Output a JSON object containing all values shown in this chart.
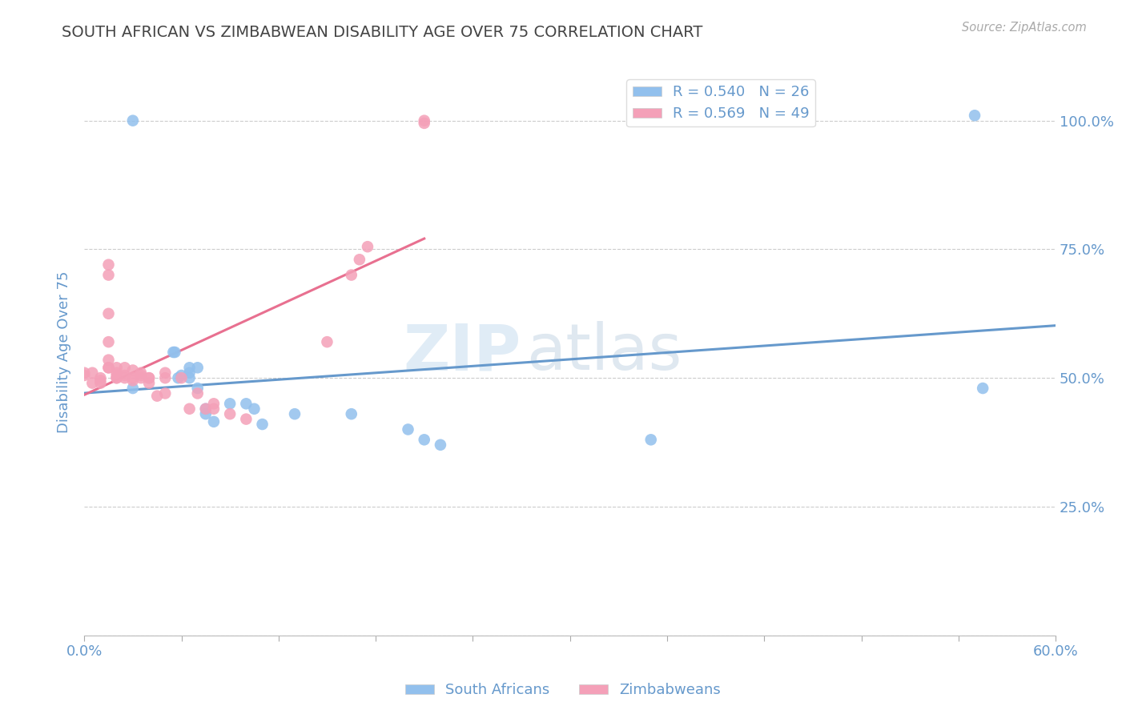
{
  "title": "SOUTH AFRICAN VS ZIMBABWEAN DISABILITY AGE OVER 75 CORRELATION CHART",
  "source": "Source: ZipAtlas.com",
  "ylabel": "Disability Age Over 75",
  "xlabel": "",
  "xlim": [
    0.0,
    0.6
  ],
  "ylim": [
    0.0,
    1.1
  ],
  "xticks": [
    0.0,
    0.06,
    0.12,
    0.18,
    0.24,
    0.3,
    0.36,
    0.42,
    0.48,
    0.54,
    0.6
  ],
  "xtick_labels": [
    "0.0%",
    "",
    "",
    "",
    "",
    "",
    "",
    "",
    "",
    "",
    "60.0%"
  ],
  "yticks": [
    0.0,
    0.25,
    0.5,
    0.75,
    1.0
  ],
  "ytick_labels_left": [
    "",
    "",
    "",
    "",
    ""
  ],
  "ytick_labels_right": [
    "",
    "25.0%",
    "50.0%",
    "75.0%",
    "100.0%"
  ],
  "legend_sa": "R = 0.540   N = 26",
  "legend_zw": "R = 0.569   N = 49",
  "sa_color": "#92C0ED",
  "zw_color": "#F4A0B8",
  "sa_line_color": "#6699CC",
  "zw_line_color": "#E87090",
  "axis_color": "#6699CC",
  "watermark_zip": "ZIP",
  "watermark_atlas": "atlas",
  "background_color": "#FFFFFF",
  "sa_x": [
    0.03,
    0.03,
    0.055,
    0.056,
    0.058,
    0.06,
    0.065,
    0.065,
    0.065,
    0.07,
    0.07,
    0.075,
    0.075,
    0.08,
    0.09,
    0.1,
    0.105,
    0.11,
    0.13,
    0.165,
    0.2,
    0.21,
    0.22,
    0.35,
    0.55,
    0.555
  ],
  "sa_y": [
    1.0,
    0.48,
    0.55,
    0.55,
    0.5,
    0.505,
    0.5,
    0.51,
    0.52,
    0.48,
    0.52,
    0.43,
    0.44,
    0.415,
    0.45,
    0.45,
    0.44,
    0.41,
    0.43,
    0.43,
    0.4,
    0.38,
    0.37,
    0.38,
    1.01,
    0.48
  ],
  "zw_x": [
    0.0,
    0.0,
    0.005,
    0.005,
    0.01,
    0.01,
    0.01,
    0.015,
    0.015,
    0.015,
    0.015,
    0.015,
    0.015,
    0.015,
    0.02,
    0.02,
    0.02,
    0.02,
    0.02,
    0.025,
    0.025,
    0.025,
    0.03,
    0.03,
    0.03,
    0.035,
    0.035,
    0.035,
    0.04,
    0.04,
    0.04,
    0.045,
    0.05,
    0.05,
    0.05,
    0.06,
    0.065,
    0.07,
    0.075,
    0.08,
    0.08,
    0.09,
    0.1,
    0.15,
    0.165,
    0.17,
    0.175,
    0.21,
    0.21
  ],
  "zw_y": [
    0.51,
    0.505,
    0.49,
    0.51,
    0.49,
    0.495,
    0.5,
    0.52,
    0.52,
    0.535,
    0.57,
    0.625,
    0.7,
    0.72,
    0.5,
    0.5,
    0.505,
    0.51,
    0.52,
    0.5,
    0.505,
    0.52,
    0.495,
    0.5,
    0.515,
    0.5,
    0.505,
    0.51,
    0.49,
    0.5,
    0.5,
    0.465,
    0.47,
    0.5,
    0.51,
    0.5,
    0.44,
    0.47,
    0.44,
    0.44,
    0.45,
    0.43,
    0.42,
    0.57,
    0.7,
    0.73,
    0.755,
    0.995,
    1.0
  ]
}
